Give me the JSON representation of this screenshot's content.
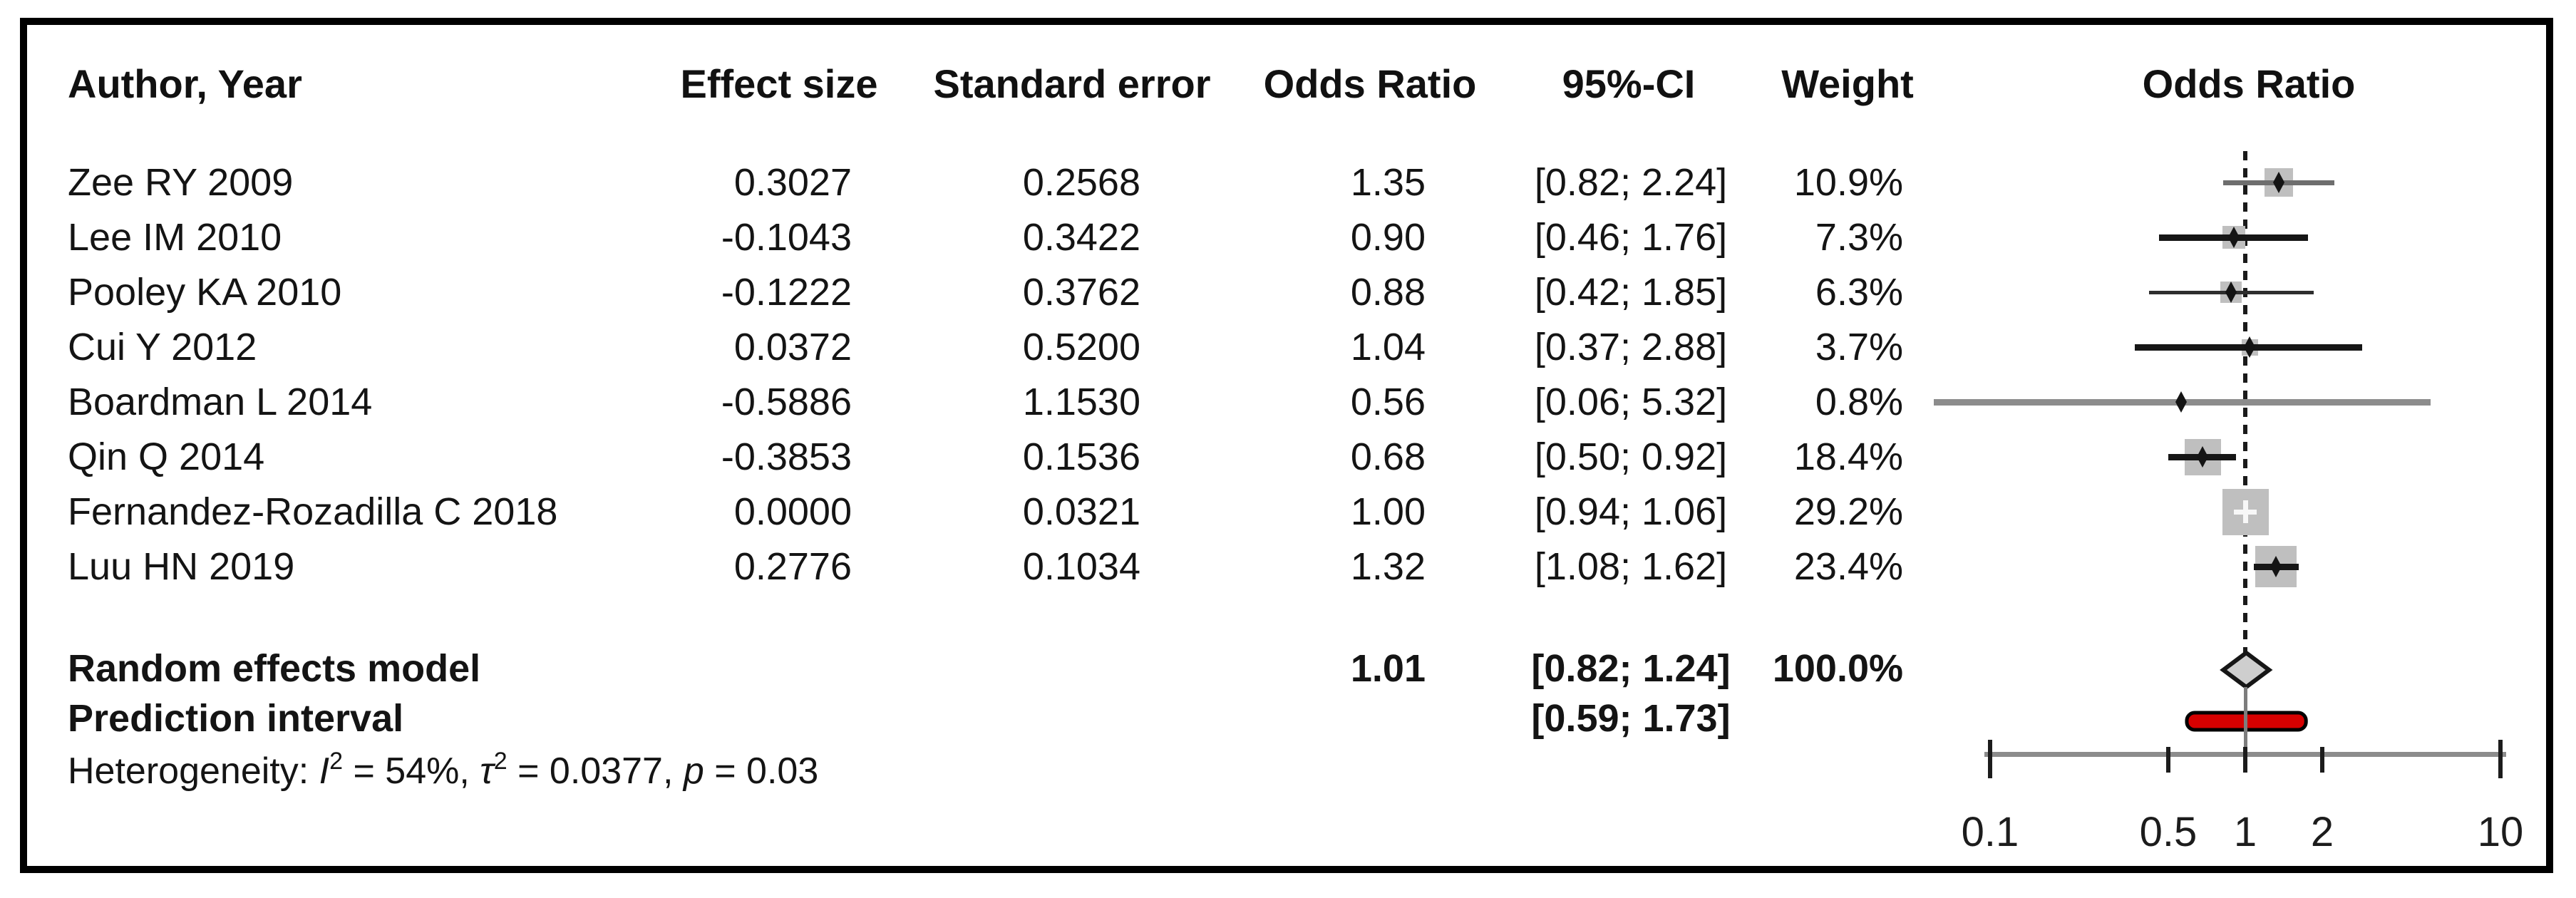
{
  "chart_data": {
    "type": "forest",
    "title": "Odds Ratio forest plot (random effects meta-analysis)",
    "scale": "log",
    "columns": {
      "author": "Author, Year",
      "effect_size": "Effect size",
      "standard_error": "Standard error",
      "odds_ratio": "Odds Ratio",
      "ci": "95%-CI",
      "weight": "Weight",
      "plot": "Odds Ratio"
    },
    "studies": [
      {
        "author": "Zee RY 2009",
        "effect_size": "0.3027",
        "standard_error": "0.2568",
        "odds_ratio": "1.35",
        "ci": "[0.82; 2.24]",
        "weight": "10.9%",
        "or": 1.35,
        "lo": 0.82,
        "hi": 2.24,
        "weight_pct": 10.9,
        "line_color": "#6e6e6e",
        "line_width": 7,
        "marker": "diamond"
      },
      {
        "author": "Lee IM 2010",
        "effect_size": "-0.1043",
        "standard_error": "0.3422",
        "odds_ratio": "0.90",
        "ci": "[0.46; 1.76]",
        "weight": "7.3%",
        "or": 0.9,
        "lo": 0.46,
        "hi": 1.76,
        "weight_pct": 7.3,
        "line_color": "#161616",
        "line_width": 9,
        "marker": "diamond"
      },
      {
        "author": "Pooley KA 2010",
        "effect_size": "-0.1222",
        "standard_error": "0.3762",
        "odds_ratio": "0.88",
        "ci": "[0.42; 1.85]",
        "weight": "6.3%",
        "or": 0.88,
        "lo": 0.42,
        "hi": 1.85,
        "weight_pct": 6.3,
        "line_color": "#2e2e2e",
        "line_width": 5,
        "marker": "diamond"
      },
      {
        "author": "Cui Y 2012",
        "effect_size": "0.0372",
        "standard_error": "0.5200",
        "odds_ratio": "1.04",
        "ci": "[0.37; 2.88]",
        "weight": "3.7%",
        "or": 1.04,
        "lo": 0.37,
        "hi": 2.88,
        "weight_pct": 3.7,
        "line_color": "#161616",
        "line_width": 9,
        "marker": "diamond"
      },
      {
        "author": "Boardman L 2014",
        "effect_size": "-0.5886",
        "standard_error": "1.1530",
        "odds_ratio": "0.56",
        "ci": "[0.06; 5.32]",
        "weight": "0.8%",
        "or": 0.56,
        "lo": 0.06,
        "hi": 5.32,
        "weight_pct": 0.8,
        "line_color": "#8c8c8c",
        "line_width": 9,
        "marker": "diamond"
      },
      {
        "author": "Qin Q 2014",
        "effect_size": "-0.3853",
        "standard_error": "0.1536",
        "odds_ratio": "0.68",
        "ci": "[0.50; 0.92]",
        "weight": "18.4%",
        "or": 0.68,
        "lo": 0.5,
        "hi": 0.92,
        "weight_pct": 18.4,
        "line_color": "#161616",
        "line_width": 9,
        "marker": "diamond"
      },
      {
        "author": "Fernandez-Rozadilla C 2018",
        "effect_size": "0.0000",
        "standard_error": "0.0321",
        "odds_ratio": "1.00",
        "ci": "[0.94; 1.06]",
        "weight": "29.2%",
        "or": 1.0,
        "lo": 0.94,
        "hi": 1.06,
        "weight_pct": 29.2,
        "line_color": "#161616",
        "line_width": 6,
        "marker": "white-cross"
      },
      {
        "author": "Luu HN 2019",
        "effect_size": "0.2776",
        "standard_error": "0.1034",
        "odds_ratio": "1.32",
        "ci": "[1.08; 1.62]",
        "weight": "23.4%",
        "or": 1.32,
        "lo": 1.08,
        "hi": 1.62,
        "weight_pct": 23.4,
        "line_color": "#161616",
        "line_width": 9,
        "marker": "diamond"
      }
    ],
    "summary": {
      "random_label": "Random effects model",
      "random_or": "1.01",
      "random_ci": "[0.82; 1.24]",
      "random_weight": "100.0%",
      "random_or_val": 1.01,
      "random_lo": 0.82,
      "random_hi": 1.24,
      "prediction_label": "Prediction interval",
      "prediction_ci": "[0.59; 1.73]",
      "prediction_lo": 0.59,
      "prediction_hi": 1.73
    },
    "heterogeneity_segments": [
      {
        "t": "Heterogeneity: "
      },
      {
        "t": "I",
        "italic": true
      },
      {
        "t": "2",
        "sup": true
      },
      {
        "t": " = 54%, "
      },
      {
        "t": "τ",
        "italic": true
      },
      {
        "t": "2",
        "sup": true
      },
      {
        "t": " = 0.0377, "
      },
      {
        "t": "p",
        "italic": true
      },
      {
        "t": " = 0.03"
      }
    ],
    "axis": {
      "range": [
        0.1,
        10
      ],
      "reference_value": 1,
      "ticks": [
        {
          "label": "0.1",
          "value": 0.1
        },
        {
          "label": "0.5",
          "value": 0.5
        },
        {
          "label": "1",
          "value": 1
        },
        {
          "label": "2",
          "value": 2
        },
        {
          "label": "10",
          "value": 10
        }
      ]
    },
    "colors": {
      "text": "#141414",
      "square": "#bfbfbf",
      "diamond_fill": "#cecece",
      "diamond_stroke": "#161616",
      "prediction_fill": "#d60000",
      "prediction_stroke": "#000000",
      "axis_line": "#8c8c8c",
      "tick": "#1c1c1c",
      "reference_dashed": "#1a1a1a",
      "reference_solid": "#7d7d7d",
      "border": "#000000"
    }
  }
}
